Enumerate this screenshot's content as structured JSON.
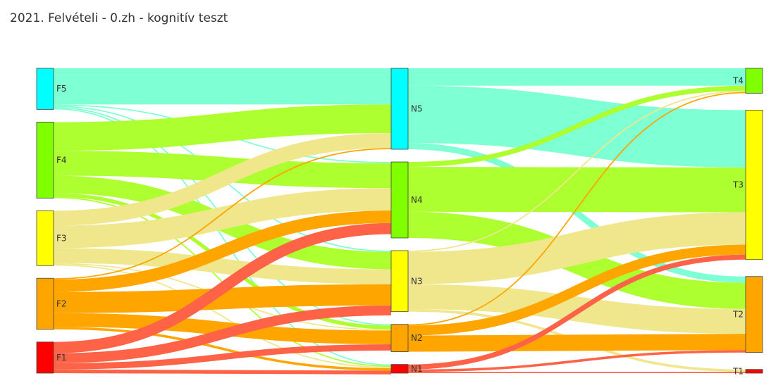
{
  "title": "2021. Felvételi - 0.zh - kognitív teszt",
  "chart_data": {
    "type": "sankey",
    "title": "2021. Felvételi - 0.zh - kognitív teszt",
    "columns": [
      [
        "F5",
        "F4",
        "F3",
        "F2",
        "F1"
      ],
      [
        "N5",
        "N4",
        "N3",
        "N2",
        "N1"
      ],
      [
        "T4",
        "T3",
        "T2",
        "T1"
      ]
    ],
    "nodes": {
      "F5": {
        "label": "F5",
        "color": "#00ffff",
        "value": 33
      },
      "F4": {
        "label": "F4",
        "color": "#7fff00",
        "value": 61
      },
      "F3": {
        "label": "F3",
        "color": "#ffff00",
        "value": 44
      },
      "F2": {
        "label": "F2",
        "color": "#ffa500",
        "value": 41
      },
      "F1": {
        "label": "F1",
        "color": "#ff0000",
        "value": 25
      },
      "N5": {
        "label": "N5",
        "color": "#00ffff",
        "value": 65
      },
      "N4": {
        "label": "N4",
        "color": "#7fff00",
        "value": 61
      },
      "N3": {
        "label": "N3",
        "color": "#ffff00",
        "value": 49
      },
      "N2": {
        "label": "N2",
        "color": "#ffa500",
        "value": 22
      },
      "N1": {
        "label": "N1",
        "color": "#ff0000",
        "value": 7
      },
      "T4": {
        "label": "T4",
        "color": "#7fff00",
        "value": 20
      },
      "T3": {
        "label": "T3",
        "color": "#ffff00",
        "value": 120
      },
      "T2": {
        "label": "T2",
        "color": "#ffa500",
        "value": 61
      },
      "T1": {
        "label": "T1",
        "color": "#ff0000",
        "value": 3
      }
    },
    "links": [
      {
        "source": "F5",
        "target": "N5",
        "value": 29,
        "color": "#7fffd4"
      },
      {
        "source": "F5",
        "target": "N4",
        "value": 1,
        "color": "#7fffd4"
      },
      {
        "source": "F5",
        "target": "N3",
        "value": 1,
        "color": "#7fffd4"
      },
      {
        "source": "F5",
        "target": "N2",
        "value": 1,
        "color": "#7fffd4"
      },
      {
        "source": "F5",
        "target": "N1",
        "value": 1,
        "color": "#7fffd4"
      },
      {
        "source": "F4",
        "target": "N5",
        "value": 23,
        "color": "#adff2f"
      },
      {
        "source": "F4",
        "target": "N4",
        "value": 20,
        "color": "#adff2f"
      },
      {
        "source": "F4",
        "target": "N3",
        "value": 14,
        "color": "#adff2f"
      },
      {
        "source": "F4",
        "target": "N2",
        "value": 3,
        "color": "#adff2f"
      },
      {
        "source": "F4",
        "target": "N1",
        "value": 1,
        "color": "#adff2f"
      },
      {
        "source": "F3",
        "target": "N5",
        "value": 12,
        "color": "#f0e68c"
      },
      {
        "source": "F3",
        "target": "N4",
        "value": 18,
        "color": "#f0e68c"
      },
      {
        "source": "F3",
        "target": "N3",
        "value": 12,
        "color": "#f0e68c"
      },
      {
        "source": "F3",
        "target": "N2",
        "value": 1,
        "color": "#f0e68c"
      },
      {
        "source": "F3",
        "target": "N1",
        "value": 1,
        "color": "#f0e68c"
      },
      {
        "source": "F2",
        "target": "N5",
        "value": 1,
        "color": "#ffa500"
      },
      {
        "source": "F2",
        "target": "N4",
        "value": 10,
        "color": "#ffa500"
      },
      {
        "source": "F2",
        "target": "N3",
        "value": 17,
        "color": "#ffa500"
      },
      {
        "source": "F2",
        "target": "N2",
        "value": 11,
        "color": "#ffa500"
      },
      {
        "source": "F2",
        "target": "N1",
        "value": 2,
        "color": "#ffa500"
      },
      {
        "source": "F1",
        "target": "N4",
        "value": 9,
        "color": "#ff6347"
      },
      {
        "source": "F1",
        "target": "N3",
        "value": 8,
        "color": "#ff6347"
      },
      {
        "source": "F1",
        "target": "N2",
        "value": 5,
        "color": "#ff6347"
      },
      {
        "source": "F1",
        "target": "N1",
        "value": 3,
        "color": "#ff6347"
      },
      {
        "source": "N5",
        "target": "T4",
        "value": 14,
        "color": "#7fffd4"
      },
      {
        "source": "N5",
        "target": "T3",
        "value": 46,
        "color": "#7fffd4"
      },
      {
        "source": "N5",
        "target": "T2",
        "value": 5,
        "color": "#7fffd4"
      },
      {
        "source": "N4",
        "target": "T4",
        "value": 4,
        "color": "#adff2f"
      },
      {
        "source": "N4",
        "target": "T3",
        "value": 36,
        "color": "#adff2f"
      },
      {
        "source": "N4",
        "target": "T2",
        "value": 21,
        "color": "#adff2f"
      },
      {
        "source": "N3",
        "target": "T4",
        "value": 1,
        "color": "#f0e68c"
      },
      {
        "source": "N3",
        "target": "T3",
        "value": 26,
        "color": "#f0e68c"
      },
      {
        "source": "N3",
        "target": "T2",
        "value": 20,
        "color": "#f0e68c"
      },
      {
        "source": "N3",
        "target": "T1",
        "value": 2,
        "color": "#f0e68c"
      },
      {
        "source": "N2",
        "target": "T4",
        "value": 1,
        "color": "#ffa500"
      },
      {
        "source": "N2",
        "target": "T3",
        "value": 8,
        "color": "#ffa500"
      },
      {
        "source": "N2",
        "target": "T2",
        "value": 13,
        "color": "#ffa500"
      },
      {
        "source": "N1",
        "target": "T3",
        "value": 4,
        "color": "#ff6347"
      },
      {
        "source": "N1",
        "target": "T2",
        "value": 2,
        "color": "#ff6347"
      },
      {
        "source": "N1",
        "target": "T1",
        "value": 1,
        "color": "#ff6347"
      }
    ]
  }
}
